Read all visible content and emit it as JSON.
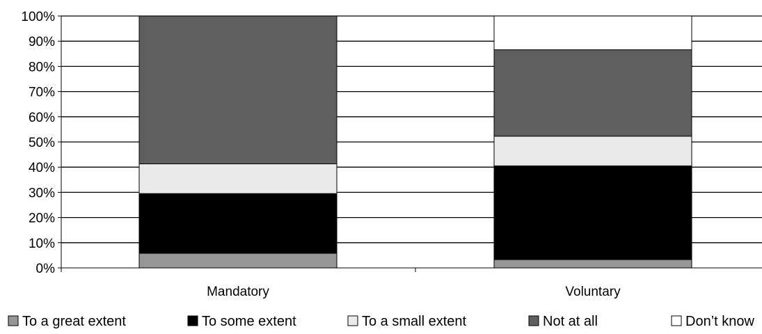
{
  "chart_data": {
    "type": "bar",
    "stacked": true,
    "percent_stacked": true,
    "categories": [
      "Mandatory",
      "Voluntary"
    ],
    "series": [
      {
        "name": "To a great extent",
        "color": "#969696",
        "values": [
          5.8,
          3.3
        ]
      },
      {
        "name": "To some extent",
        "color": "#000000",
        "values": [
          23.7,
          37.2
        ]
      },
      {
        "name": "To a small extent",
        "color": "#eaeaea",
        "values": [
          11.8,
          11.8
        ]
      },
      {
        "name": "Not at all",
        "color": "#5f5f5f",
        "values": [
          58.7,
          34.3
        ]
      },
      {
        "name": "Don’t know",
        "color": "#ffffff",
        "values": [
          0,
          13.4
        ]
      }
    ],
    "ylim": [
      0,
      100
    ],
    "yticks": [
      "0%",
      "10%",
      "20%",
      "30%",
      "40%",
      "50%",
      "60%",
      "70%",
      "80%",
      "90%",
      "100%"
    ],
    "grid": true,
    "legend_position": "bottom",
    "title": "",
    "xlabel": "",
    "ylabel": ""
  }
}
